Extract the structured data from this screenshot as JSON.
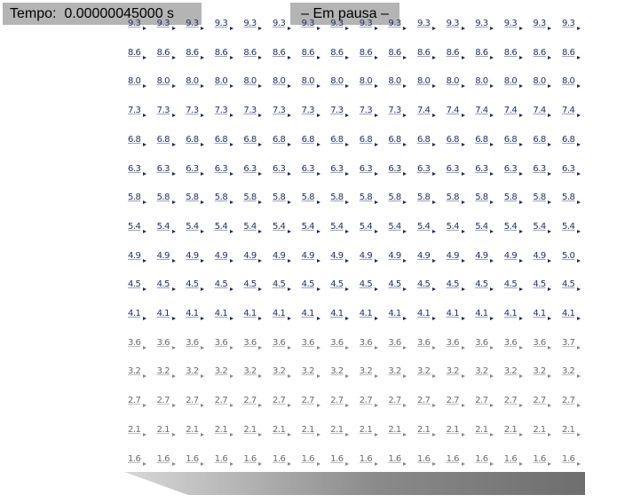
{
  "hud": {
    "time_label": "Tempo:",
    "time_value": "0.00000045000 s",
    "status": "– Em pausa –"
  },
  "grid": {
    "columns": 16,
    "rows": [
      [
        "9.3",
        "9.3",
        "9.3",
        "9.3",
        "9.3",
        "9.3",
        "9.3",
        "9.3",
        "9.3",
        "9.3",
        "9.3",
        "9.3",
        "9.3",
        "9.3",
        "9.3",
        "9.3"
      ],
      [
        "8.6",
        "8.6",
        "8.6",
        "8.6",
        "8.6",
        "8.6",
        "8.6",
        "8.6",
        "8.6",
        "8.6",
        "8.6",
        "8.6",
        "8.6",
        "8.6",
        "8.6",
        "8.6"
      ],
      [
        "8.0",
        "8.0",
        "8.0",
        "8.0",
        "8.0",
        "8.0",
        "8.0",
        "8.0",
        "8.0",
        "8.0",
        "8.0",
        "8.0",
        "8.0",
        "8.0",
        "8.0",
        "8.0"
      ],
      [
        "7.3",
        "7.3",
        "7.3",
        "7.3",
        "7.3",
        "7.3",
        "7.3",
        "7.3",
        "7.3",
        "7.3",
        "7.4",
        "7.4",
        "7.4",
        "7.4",
        "7.4",
        "7.4"
      ],
      [
        "6.8",
        "6.8",
        "6.8",
        "6.8",
        "6.8",
        "6.8",
        "6.8",
        "6.8",
        "6.8",
        "6.8",
        "6.8",
        "6.8",
        "6.8",
        "6.8",
        "6.8",
        "6.8"
      ],
      [
        "6.3",
        "6.3",
        "6.3",
        "6.3",
        "6.3",
        "6.3",
        "6.3",
        "6.3",
        "6.3",
        "6.3",
        "6.3",
        "6.3",
        "6.3",
        "6.3",
        "6.3",
        "6.3"
      ],
      [
        "5.8",
        "5.8",
        "5.8",
        "5.8",
        "5.8",
        "5.8",
        "5.8",
        "5.8",
        "5.8",
        "5.8",
        "5.8",
        "5.8",
        "5.8",
        "5.8",
        "5.8",
        "5.8"
      ],
      [
        "5.4",
        "5.4",
        "5.4",
        "5.4",
        "5.4",
        "5.4",
        "5.4",
        "5.4",
        "5.4",
        "5.4",
        "5.4",
        "5.4",
        "5.4",
        "5.4",
        "5.4",
        "5.4"
      ],
      [
        "4.9",
        "4.9",
        "4.9",
        "4.9",
        "4.9",
        "4.9",
        "4.9",
        "4.9",
        "4.9",
        "4.9",
        "4.9",
        "4.9",
        "4.9",
        "4.9",
        "4.9",
        "5.0"
      ],
      [
        "4.5",
        "4.5",
        "4.5",
        "4.5",
        "4.5",
        "4.5",
        "4.5",
        "4.5",
        "4.5",
        "4.5",
        "4.5",
        "4.5",
        "4.5",
        "4.5",
        "4.5",
        "4.5"
      ],
      [
        "4.1",
        "4.1",
        "4.1",
        "4.1",
        "4.1",
        "4.1",
        "4.1",
        "4.1",
        "4.1",
        "4.1",
        "4.1",
        "4.1",
        "4.1",
        "4.1",
        "4.1",
        "4.1"
      ],
      [
        "3.6",
        "3.6",
        "3.6",
        "3.6",
        "3.6",
        "3.6",
        "3.6",
        "3.6",
        "3.6",
        "3.6",
        "3.6",
        "3.6",
        "3.6",
        "3.6",
        "3.6",
        "3.7"
      ],
      [
        "3.2",
        "3.2",
        "3.2",
        "3.2",
        "3.2",
        "3.2",
        "3.2",
        "3.2",
        "3.2",
        "3.2",
        "3.2",
        "3.2",
        "3.2",
        "3.2",
        "3.2",
        "3.2"
      ],
      [
        "2.7",
        "2.7",
        "2.7",
        "2.7",
        "2.7",
        "2.7",
        "2.7",
        "2.7",
        "2.7",
        "2.7",
        "2.7",
        "2.7",
        "2.7",
        "2.7",
        "2.7",
        "2.7"
      ],
      [
        "2.1",
        "2.1",
        "2.1",
        "2.1",
        "2.1",
        "2.1",
        "2.1",
        "2.1",
        "2.1",
        "2.1",
        "2.1",
        "2.1",
        "2.1",
        "2.1",
        "2.1",
        "2.1"
      ],
      [
        "1.6",
        "1.6",
        "1.6",
        "1.6",
        "1.6",
        "1.6",
        "1.6",
        "1.6",
        "1.6",
        "1.6",
        "1.6",
        "1.6",
        "1.6",
        "1.6",
        "1.6",
        "1.6"
      ]
    ]
  },
  "colors": {
    "hud_background": "#b4b4b4",
    "label_dark": "#23305f",
    "label_light": "#6b6b6b",
    "floor_dark": "#6e6e6e",
    "floor_light": "#d8d8d8"
  }
}
